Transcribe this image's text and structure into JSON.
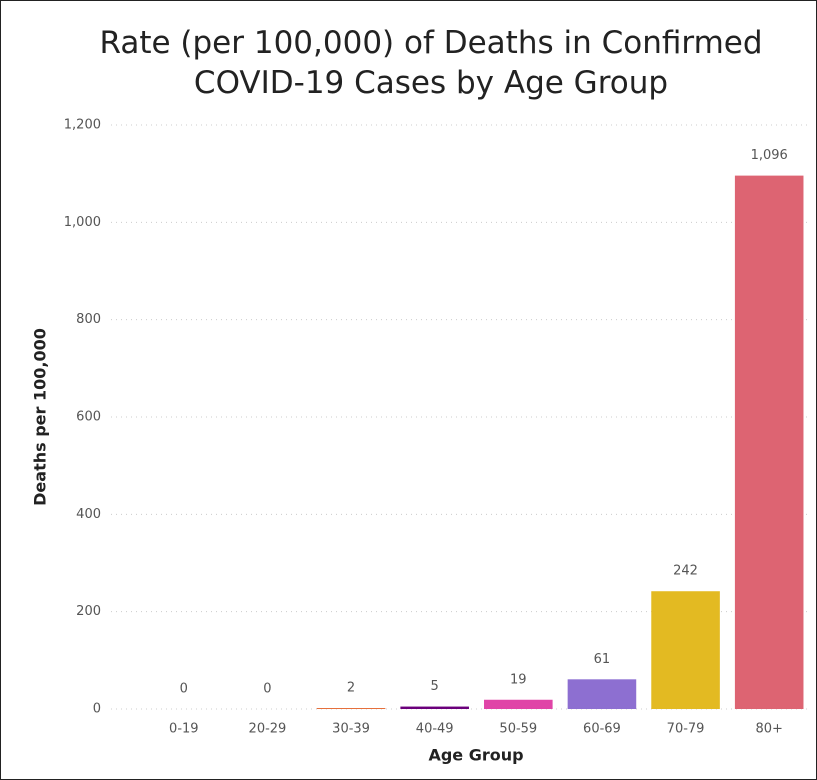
{
  "chart_data": {
    "type": "bar",
    "title": "Rate (per 100,000) of Deaths in Confirmed COVID-19 Cases by Age Group",
    "x_label": "Age Group",
    "y_label": "Deaths per 100,000",
    "categories": [
      "0-19",
      "20-29",
      "30-39",
      "40-49",
      "50-59",
      "60-69",
      "70-79",
      "80+"
    ],
    "values": [
      0,
      0,
      2,
      5,
      19,
      61,
      242,
      1096
    ],
    "value_labels": [
      "0",
      "0",
      "2",
      "5",
      "19",
      "61",
      "242",
      "1,096"
    ],
    "colors": [
      "#118DFF",
      "#3B3BCF",
      "#E66C37",
      "#6B007B",
      "#E044A7",
      "#8D6FD1",
      "#E3BA22",
      "#DD6472"
    ],
    "ylim": [
      0,
      1200
    ],
    "yticks": [
      0,
      200,
      400,
      600,
      800,
      {
        "value": 1000,
        "label": "1,000"
      },
      {
        "value": 1200,
        "label": "1,200"
      }
    ],
    "grid": true
  }
}
